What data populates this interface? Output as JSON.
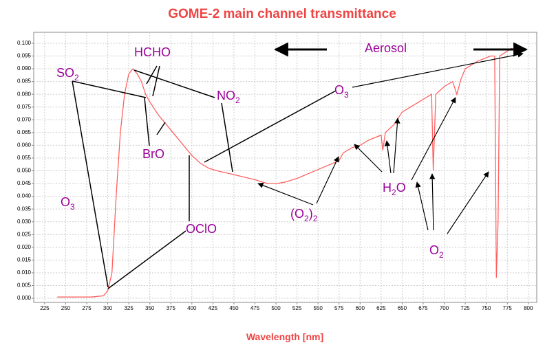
{
  "chart_data": {
    "type": "line",
    "title": "GOME-2 main channel transmittance",
    "x_label": "Wavelength [nm]",
    "xlim": [
      212,
      810
    ],
    "ylim": [
      -0.0016,
      0.1043
    ],
    "xticks": [
      225,
      250,
      275,
      300,
      325,
      350,
      375,
      400,
      425,
      450,
      475,
      500,
      525,
      550,
      575,
      600,
      625,
      650,
      675,
      700,
      725,
      750,
      775,
      800
    ],
    "yticks": [
      {
        "value": 0,
        "label": "0.000"
      },
      {
        "value": 0.005,
        "label": "0.005"
      },
      {
        "value": 0.01,
        "label": "0.010"
      },
      {
        "value": 0.015,
        "label": "0.015"
      },
      {
        "value": 0.02,
        "label": "0.020"
      },
      {
        "value": 0.025,
        "label": "0.025"
      },
      {
        "value": 0.03,
        "label": "0.030"
      },
      {
        "value": 0.035,
        "label": "0.035"
      },
      {
        "value": 0.04,
        "label": "0.040"
      },
      {
        "value": 0.045,
        "label": "0.045"
      },
      {
        "value": 0.05,
        "label": "0.050"
      },
      {
        "value": 0.055,
        "label": "0.055"
      },
      {
        "value": 0.06,
        "label": "0.060"
      },
      {
        "value": 0.065,
        "label": "0.065"
      },
      {
        "value": 0.07,
        "label": "0.070"
      },
      {
        "value": 0.075,
        "label": "0.075"
      },
      {
        "value": 0.08,
        "label": "0.080"
      },
      {
        "value": 0.085,
        "label": "0.085"
      },
      {
        "value": 0.09,
        "label": "0.090"
      },
      {
        "value": 0.095,
        "label": "0.095"
      },
      {
        "value": 0.1,
        "label": "0.100"
      }
    ],
    "grid": true,
    "series": [
      {
        "color": "#ff6060",
        "x": [
          240,
          280,
          295,
          300,
          305,
          310,
          315,
          320,
          325,
          330,
          335,
          340,
          345,
          350,
          360,
          370,
          380,
          390,
          395,
          400,
          410,
          420,
          430,
          450,
          475,
          490,
          500,
          510,
          525,
          550,
          575,
          580,
          590,
          600,
          610,
          625,
          627,
          630,
          640,
          650,
          660,
          675,
          685,
          687,
          690,
          700,
          710,
          715,
          720,
          725,
          740,
          755,
          760,
          762,
          764,
          766,
          780,
          790
        ],
        "values": [
          0.0005,
          0.0005,
          0.001,
          0.003,
          0.01,
          0.04,
          0.065,
          0.08,
          0.088,
          0.09,
          0.088,
          0.085,
          0.08,
          0.077,
          0.072,
          0.068,
          0.064,
          0.06,
          0.058,
          0.056,
          0.053,
          0.051,
          0.05,
          0.0485,
          0.0465,
          0.045,
          0.045,
          0.0455,
          0.047,
          0.0505,
          0.054,
          0.057,
          0.059,
          0.06,
          0.062,
          0.064,
          0.058,
          0.065,
          0.068,
          0.073,
          0.075,
          0.078,
          0.08,
          0.05,
          0.08,
          0.083,
          0.085,
          0.08,
          0.086,
          0.09,
          0.093,
          0.095,
          0.095,
          0.008,
          0.03,
          0.095,
          0.098,
          0.097
        ]
      }
    ],
    "annotations": [
      {
        "parts": [
          "HCHO"
        ]
      },
      {
        "parts": [
          "SO",
          "2"
        ]
      },
      {
        "parts": [
          "NO",
          "2"
        ]
      },
      {
        "parts": [
          "O",
          "3"
        ]
      },
      {
        "parts": [
          "Aerosol"
        ]
      },
      {
        "parts": [
          "BrO"
        ]
      },
      {
        "parts": [
          "OClO"
        ]
      },
      {
        "parts": [
          "O",
          "3"
        ]
      },
      {
        "parts": [
          "(O",
          "2",
          ")",
          "2"
        ]
      },
      {
        "parts": [
          "H",
          "2",
          "O"
        ]
      },
      {
        "parts": [
          "O",
          "2"
        ]
      }
    ]
  }
}
